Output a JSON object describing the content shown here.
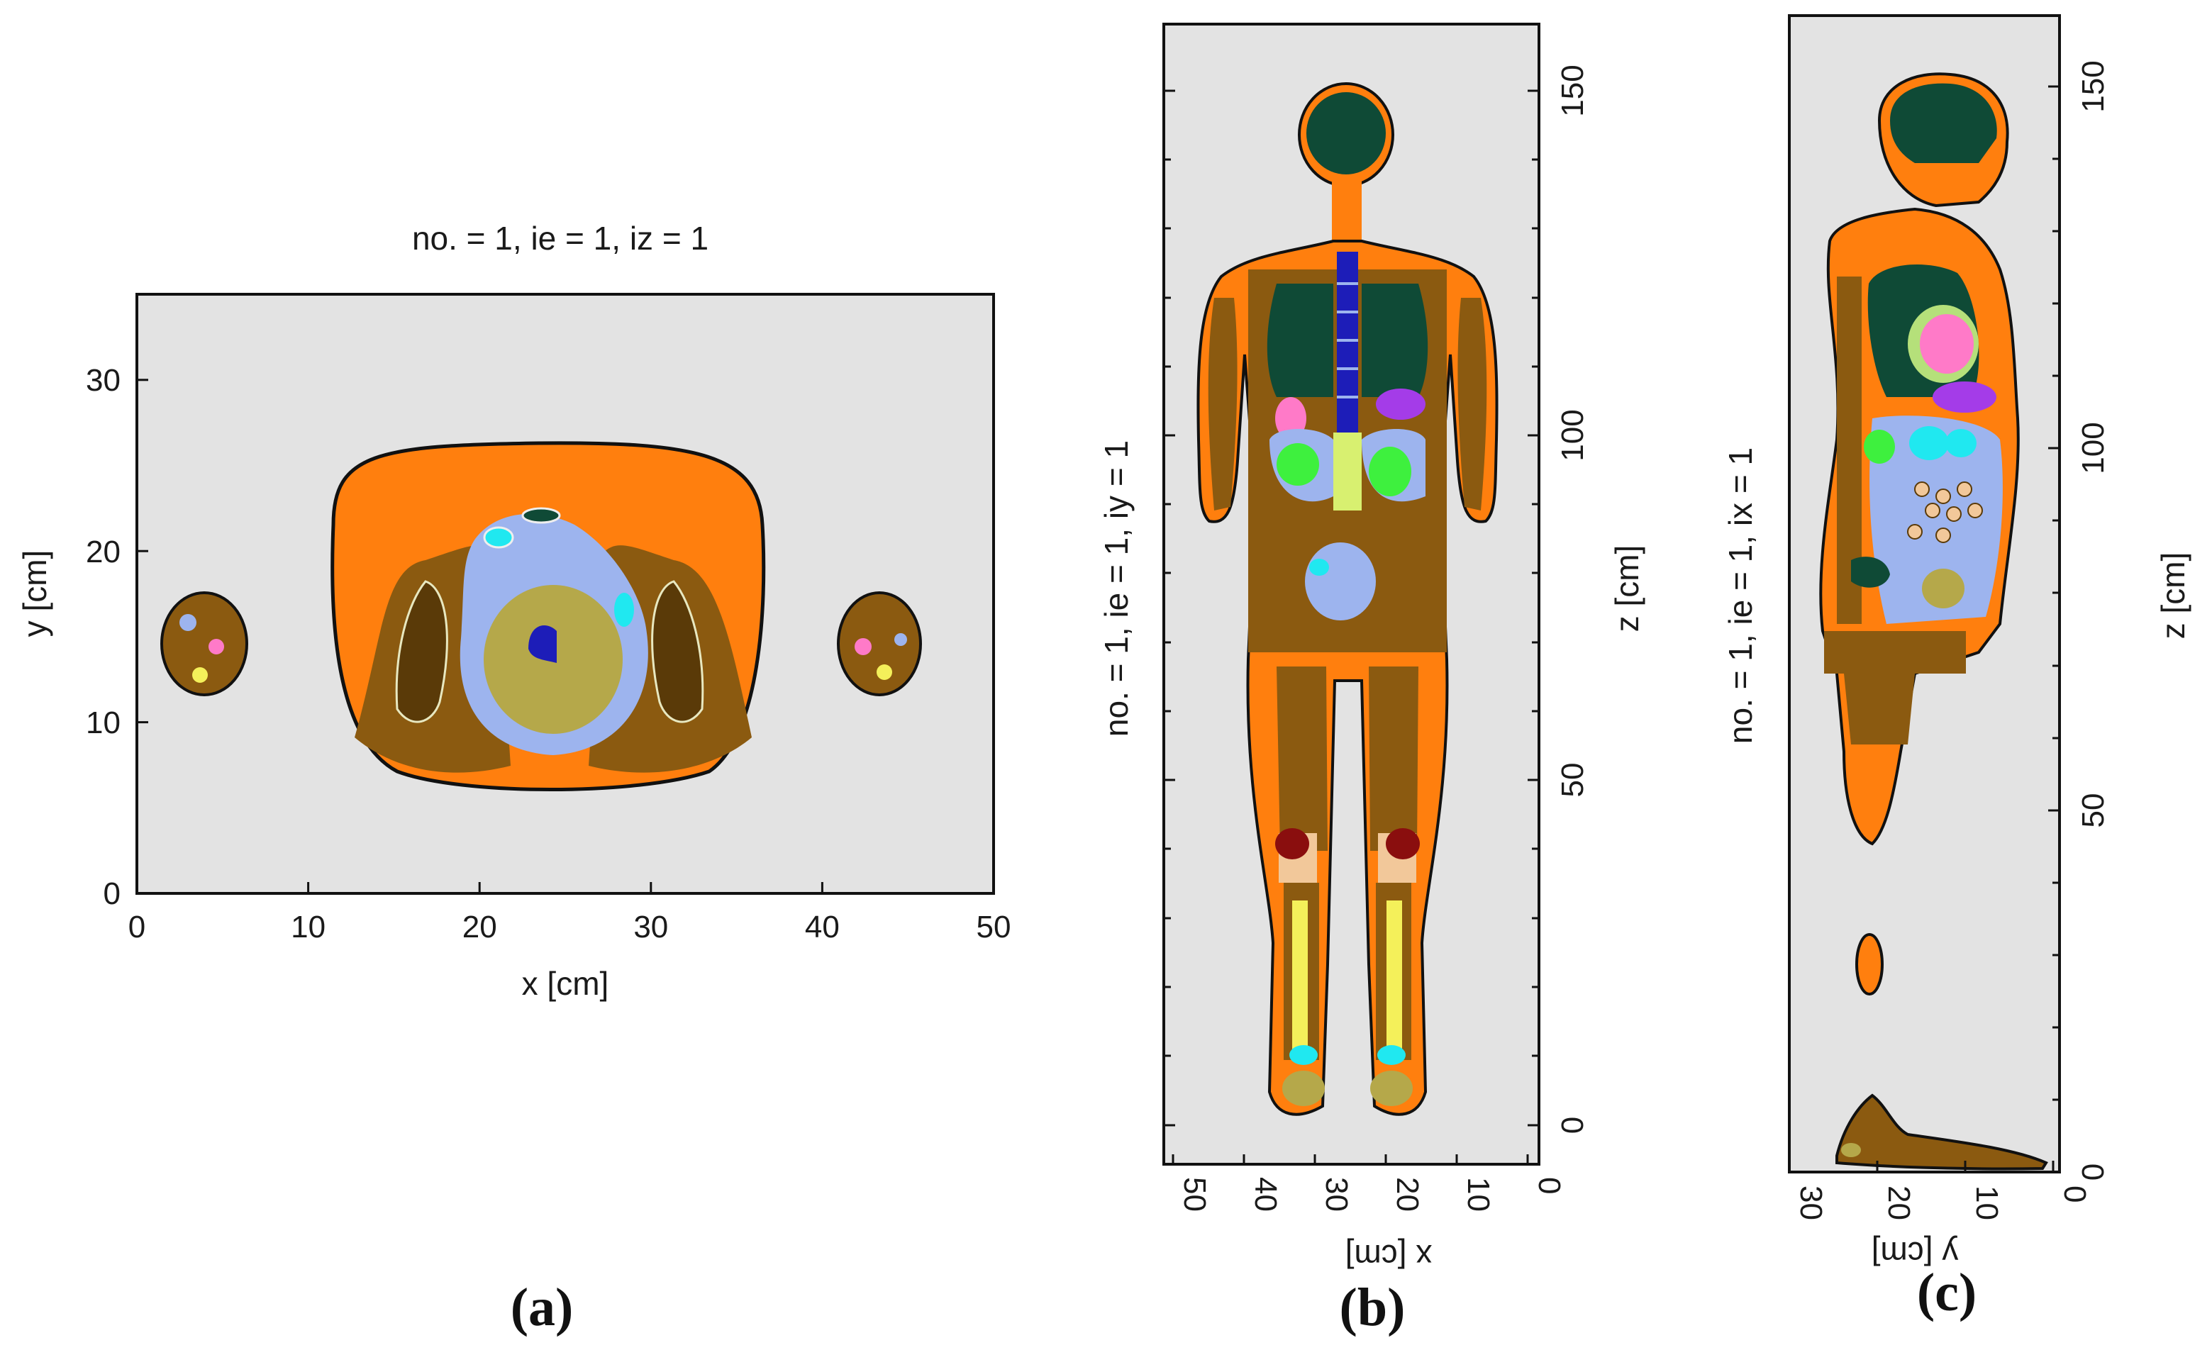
{
  "colors": {
    "background": "#e3e3e3",
    "skin_soft_tissue": "#ff7f0e",
    "muscle": "#8b5a10",
    "dark_muscle": "#5a3a08",
    "lung": "#0f4a36",
    "fat_lightblue": "#9db4ee",
    "heart_olive": "#b5a84a",
    "spine_blue": "#1d1db8",
    "liver_purple": "#a43ce8",
    "pink_organ": "#ff7ac8",
    "green_organ": "#3ef03e",
    "cyan_organ": "#20e8f0",
    "bone_yellow": "#f4f05a",
    "knee_red": "#8a0e0e",
    "bone_beige": "#f2c89a"
  },
  "panels": [
    {
      "id": "a",
      "letter": "(a)",
      "title": "no. =  1,  ie =  1,  iz =  1",
      "xlabel": "x [cm]",
      "ylabel": "y [cm]",
      "xticks": [
        "0",
        "10",
        "20",
        "30",
        "40",
        "50"
      ],
      "yticks": [
        "0",
        "10",
        "20",
        "30"
      ]
    },
    {
      "id": "b",
      "letter": "(b)",
      "title": "no. =  1,  ie =  1,  iy =  1",
      "xlabel": "x [cm]",
      "zlabel": "z [cm]",
      "xticks": [
        "50",
        "40",
        "30",
        "20",
        "10",
        "0"
      ],
      "zticks": [
        "0",
        "50",
        "100",
        "150"
      ]
    },
    {
      "id": "c",
      "letter": "(c)",
      "title": "no. = 1,  ie = 1,  ix = 1",
      "ylabel": "y [cm]",
      "zlabel": "z [cm]",
      "yticks": [
        "30",
        "20",
        "10",
        "0"
      ],
      "zticks": [
        "0",
        "50",
        "100",
        "150"
      ]
    }
  ]
}
